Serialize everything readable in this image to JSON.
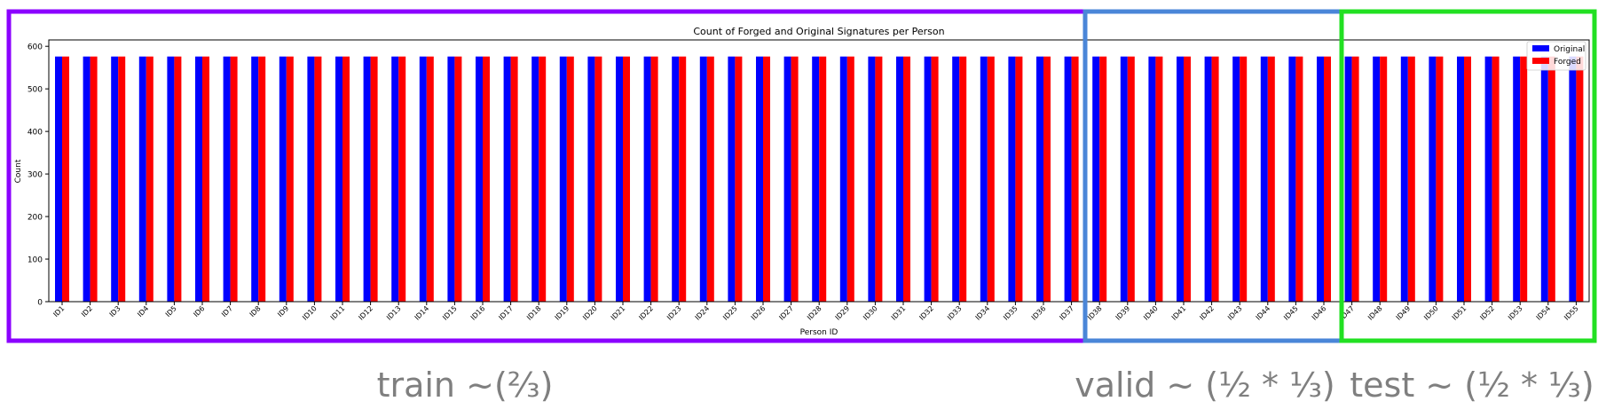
{
  "chart_data": {
    "type": "bar",
    "title": "Count of Forged and Original Signatures per Person",
    "xlabel": "Person ID",
    "ylabel": "Count",
    "ylim": [
      0,
      615
    ],
    "yticks": [
      0,
      100,
      200,
      300,
      400,
      500,
      600
    ],
    "legend": "top-right",
    "grid": false,
    "categories": [
      "ID1",
      "ID2",
      "ID3",
      "ID4",
      "ID5",
      "ID6",
      "ID7",
      "ID8",
      "ID9",
      "ID10",
      "ID11",
      "ID12",
      "ID13",
      "ID14",
      "ID15",
      "ID16",
      "ID17",
      "ID18",
      "ID19",
      "ID20",
      "ID21",
      "ID22",
      "ID23",
      "ID24",
      "ID25",
      "ID26",
      "ID27",
      "ID28",
      "ID29",
      "ID30",
      "ID31",
      "ID32",
      "ID33",
      "ID34",
      "ID35",
      "ID36",
      "ID37",
      "ID38",
      "ID39",
      "ID40",
      "ID41",
      "ID42",
      "ID43",
      "ID44",
      "ID45",
      "ID46",
      "ID47",
      "ID48",
      "ID49",
      "ID50",
      "ID51",
      "ID52",
      "ID53",
      "ID54",
      "ID55"
    ],
    "series": [
      {
        "name": "Original",
        "color": "#0000ff",
        "values": [
          576,
          576,
          576,
          576,
          576,
          576,
          576,
          576,
          576,
          576,
          576,
          576,
          576,
          576,
          576,
          576,
          576,
          576,
          576,
          576,
          576,
          576,
          576,
          576,
          576,
          576,
          576,
          576,
          576,
          576,
          576,
          576,
          576,
          576,
          576,
          576,
          576,
          576,
          576,
          576,
          576,
          576,
          576,
          576,
          576,
          576,
          576,
          576,
          576,
          576,
          576,
          576,
          576,
          576,
          576
        ]
      },
      {
        "name": "Forged",
        "color": "#ff0000",
        "values": [
          576,
          576,
          576,
          576,
          576,
          576,
          576,
          576,
          576,
          576,
          576,
          576,
          576,
          576,
          576,
          576,
          576,
          576,
          576,
          576,
          576,
          576,
          576,
          576,
          576,
          576,
          576,
          576,
          576,
          576,
          576,
          576,
          576,
          576,
          576,
          576,
          576,
          576,
          576,
          576,
          576,
          576,
          576,
          576,
          576,
          576,
          576,
          576,
          576,
          576,
          576,
          576,
          576,
          576,
          576
        ]
      }
    ]
  },
  "splits": [
    {
      "label": "train ~(⅔)",
      "color": "#8b00ff",
      "first": "ID1",
      "last": "ID37"
    },
    {
      "label": "valid ~ (½ * ⅓)",
      "color": "#4a86d8",
      "first": "ID38",
      "last": "ID46"
    },
    {
      "label": "test ~ (½ * ⅓)",
      "color": "#22e022",
      "first": "ID47",
      "last": "ID55"
    }
  ]
}
